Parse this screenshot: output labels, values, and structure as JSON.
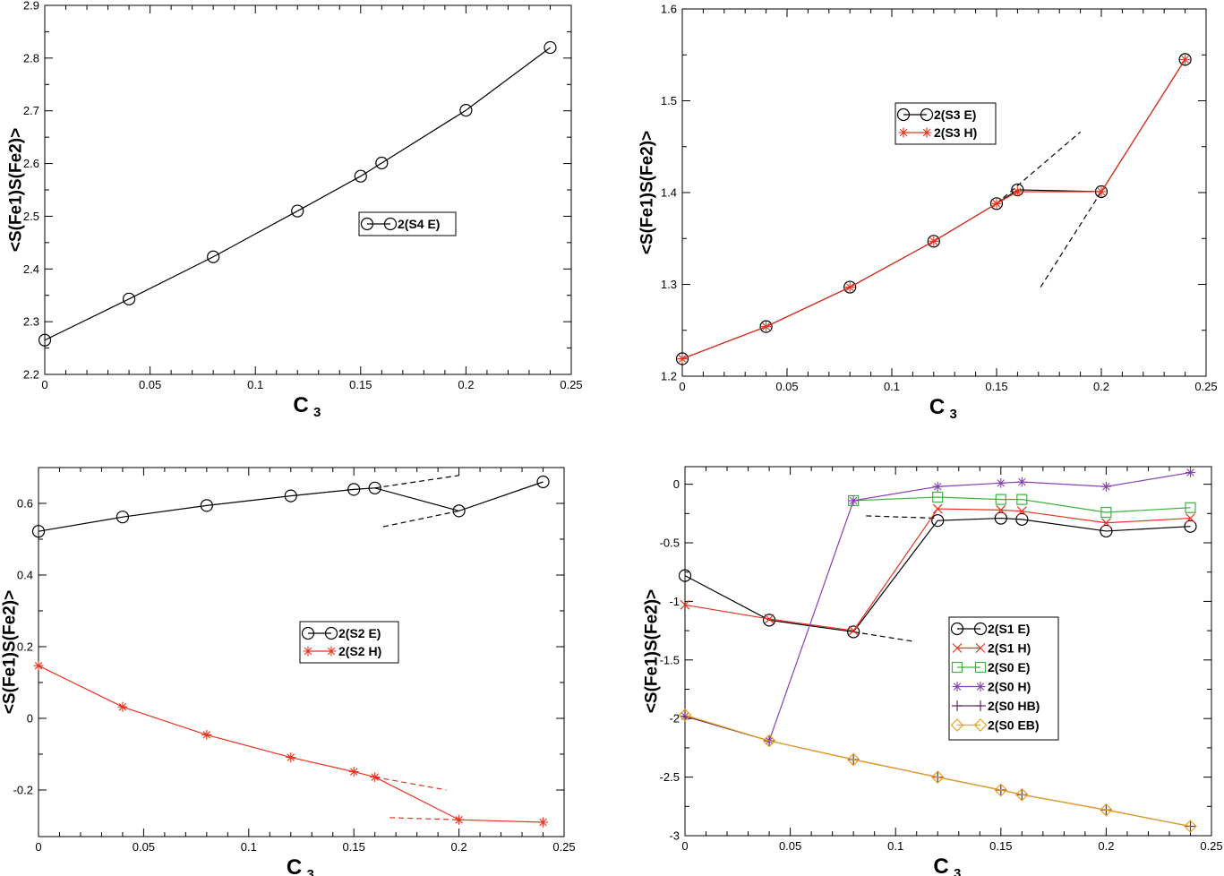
{
  "chart_data": [
    {
      "type": "line",
      "xlabel": "C",
      "xlabel_sub": "3",
      "ylabel": "<S(Fe1)S(Fe2)>",
      "xlim": [
        0,
        0.25
      ],
      "ylim": [
        2.2,
        2.9
      ],
      "xticks": [
        0,
        0.05,
        0.1,
        0.15,
        0.2,
        0.25
      ],
      "xtick_labels": [
        "0",
        "0.05",
        "0.1",
        "0.15",
        "0.2",
        "0.25"
      ],
      "yticks": [
        2.2,
        2.3,
        2.4,
        2.5,
        2.6,
        2.7,
        2.8,
        2.9
      ],
      "ytick_labels": [
        "2.2",
        "2.3",
        "2.4",
        "2.5",
        "2.6",
        "2.7",
        "2.8",
        "2.9"
      ],
      "legend": "center",
      "series": [
        {
          "name": "2(S4 E)",
          "color": "#000000",
          "marker": "circle",
          "x": [
            0,
            0.04,
            0.08,
            0.12,
            0.15,
            0.16,
            0.2,
            0.24
          ],
          "y": [
            2.265,
            2.343,
            2.423,
            2.51,
            2.576,
            2.601,
            2.701,
            2.82
          ]
        }
      ],
      "guides": []
    },
    {
      "type": "line",
      "xlabel": "C",
      "xlabel_sub": "3",
      "ylabel": "<S(Fe1)S(Fe2)>",
      "xlim": [
        0,
        0.25
      ],
      "ylim": [
        1.2,
        1.6
      ],
      "xticks": [
        0,
        0.05,
        0.1,
        0.15,
        0.2,
        0.25
      ],
      "xtick_labels": [
        "0",
        "0.05",
        "0.1",
        "0.15",
        "0.2",
        "0.25"
      ],
      "yticks": [
        1.2,
        1.3,
        1.4,
        1.5,
        1.6
      ],
      "ytick_labels": [
        "1.2",
        "1.3",
        "1.4",
        "1.5",
        "1.6"
      ],
      "legend": "upper-center",
      "series": [
        {
          "name": "2(S3 E)",
          "color": "#000000",
          "marker": "circle",
          "x": [
            0,
            0.04,
            0.08,
            0.12,
            0.15,
            0.16,
            0.2,
            0.24
          ],
          "y": [
            1.219,
            1.254,
            1.297,
            1.347,
            1.388,
            1.403,
            1.401,
            1.545
          ]
        },
        {
          "name": "2(S3 H)",
          "color": "#e8321e",
          "marker": "star",
          "x": [
            0,
            0.04,
            0.08,
            0.12,
            0.15,
            0.16,
            0.2,
            0.24
          ],
          "y": [
            1.219,
            1.254,
            1.297,
            1.347,
            1.388,
            1.401,
            1.401,
            1.545
          ]
        }
      ],
      "guides": [
        {
          "color": "#000000",
          "x": [
            0.15,
            0.19
          ],
          "y": [
            1.388,
            1.466
          ]
        },
        {
          "color": "#000000",
          "x": [
            0.171,
            0.2
          ],
          "y": [
            1.297,
            1.401
          ]
        }
      ]
    },
    {
      "type": "line",
      "xlabel": "C",
      "xlabel_sub": "3",
      "ylabel": "<S(Fe1)S(Fe2)>",
      "xlim": [
        0,
        0.25
      ],
      "ylim": [
        -0.33,
        0.7
      ],
      "xticks": [
        0,
        0.05,
        0.1,
        0.15,
        0.2,
        0.25
      ],
      "xtick_labels": [
        "0",
        "0.05",
        "0.1",
        "0.15",
        "0.2",
        "0.25"
      ],
      "yticks": [
        -0.2,
        0,
        0.2,
        0.4,
        0.6
      ],
      "ytick_labels": [
        "-0.2",
        "0",
        "0.2",
        "0.4",
        "0.6"
      ],
      "legend": "center",
      "series": [
        {
          "name": "2(S2 E)",
          "color": "#000000",
          "marker": "circle",
          "x": [
            0,
            0.04,
            0.08,
            0.12,
            0.15,
            0.16,
            0.2,
            0.24
          ],
          "y": [
            0.522,
            0.562,
            0.594,
            0.621,
            0.639,
            0.643,
            0.579,
            0.66
          ]
        },
        {
          "name": "2(S2 H)",
          "color": "#e8321e",
          "marker": "star",
          "x": [
            0,
            0.04,
            0.08,
            0.12,
            0.15,
            0.16,
            0.2,
            0.24
          ],
          "y": [
            0.147,
            0.032,
            -0.046,
            -0.109,
            -0.149,
            -0.164,
            -0.283,
            -0.29
          ]
        }
      ],
      "guides": [
        {
          "color": "#000000",
          "x": [
            0.16,
            0.2
          ],
          "y": [
            0.643,
            0.678
          ]
        },
        {
          "color": "#000000",
          "x": [
            0.164,
            0.2
          ],
          "y": [
            0.535,
            0.579
          ]
        },
        {
          "color": "#e8321e",
          "x": [
            0.16,
            0.194
          ],
          "y": [
            -0.164,
            -0.2
          ]
        },
        {
          "color": "#e8321e",
          "x": [
            0.167,
            0.2
          ],
          "y": [
            -0.277,
            -0.283
          ]
        }
      ]
    },
    {
      "type": "line",
      "xlabel": "C",
      "xlabel_sub": "3",
      "ylabel": "<S(Fe1)S(Fe2)>",
      "xlim": [
        0,
        0.25
      ],
      "ylim": [
        -3,
        0.15
      ],
      "xticks": [
        0,
        0.05,
        0.1,
        0.15,
        0.2,
        0.25
      ],
      "xtick_labels": [
        "0",
        "0.05",
        "0.1",
        "0.15",
        "0.2",
        "0.25"
      ],
      "yticks": [
        -3,
        -2.5,
        -2,
        -1.5,
        -1,
        -0.5,
        0
      ],
      "ytick_labels": [
        "-3",
        "-2.5",
        "-2",
        "-1.5",
        "-1",
        "-0.5",
        "0"
      ],
      "legend": "center-right",
      "series": [
        {
          "name": "2(S1 E)",
          "color": "#000000",
          "marker": "circle",
          "x": [
            0,
            0.04,
            0.08,
            0.12,
            0.15,
            0.16,
            0.2,
            0.24
          ],
          "y": [
            -0.78,
            -1.16,
            -1.26,
            -0.31,
            -0.29,
            -0.3,
            -0.4,
            -0.36
          ]
        },
        {
          "name": "2(S1 H)",
          "color": "#e8321e",
          "marker": "x",
          "x": [
            0,
            0.04,
            0.08,
            0.12,
            0.15,
            0.16,
            0.2,
            0.24
          ],
          "y": [
            -1.03,
            -1.15,
            -1.25,
            -0.21,
            -0.22,
            -0.23,
            -0.33,
            -0.29
          ]
        },
        {
          "name": "2(S0 E)",
          "color": "#3cb43c",
          "marker": "square",
          "x": [
            0.08,
            0.12,
            0.15,
            0.16,
            0.2,
            0.24
          ],
          "y": [
            -0.14,
            -0.11,
            -0.13,
            -0.13,
            -0.24,
            -0.2
          ]
        },
        {
          "name": "2(S0 H)",
          "color": "#8a3fb4",
          "marker": "star",
          "x": [
            0,
            0.04,
            0.08,
            0.12,
            0.15,
            0.16,
            0.2,
            0.24
          ],
          "y": [
            -1.98,
            -2.19,
            -0.14,
            -0.02,
            0.01,
            0.02,
            -0.02,
            0.1
          ]
        },
        {
          "name": "2(S0 HB)",
          "color": "#6a2a6a",
          "marker": "plus",
          "x": [
            0,
            0.04,
            0.08,
            0.12,
            0.15,
            0.16,
            0.2,
            0.24
          ],
          "y": [
            -1.98,
            -2.19,
            -2.35,
            -2.5,
            -2.61,
            -2.65,
            -2.78,
            -2.92
          ]
        },
        {
          "name": "2(S0 EB)",
          "color": "#e8a21e",
          "marker": "diamond",
          "x": [
            0,
            0.04,
            0.08,
            0.12,
            0.15,
            0.16,
            0.2,
            0.24
          ],
          "y": [
            -1.97,
            -2.19,
            -2.35,
            -2.5,
            -2.61,
            -2.65,
            -2.78,
            -2.92
          ]
        }
      ],
      "guides": [
        {
          "color": "#000000",
          "x": [
            0.086,
            0.12
          ],
          "y": [
            -0.27,
            -0.29
          ]
        },
        {
          "color": "#000000",
          "x": [
            0.08,
            0.108
          ],
          "y": [
            -1.26,
            -1.34
          ]
        }
      ]
    }
  ]
}
